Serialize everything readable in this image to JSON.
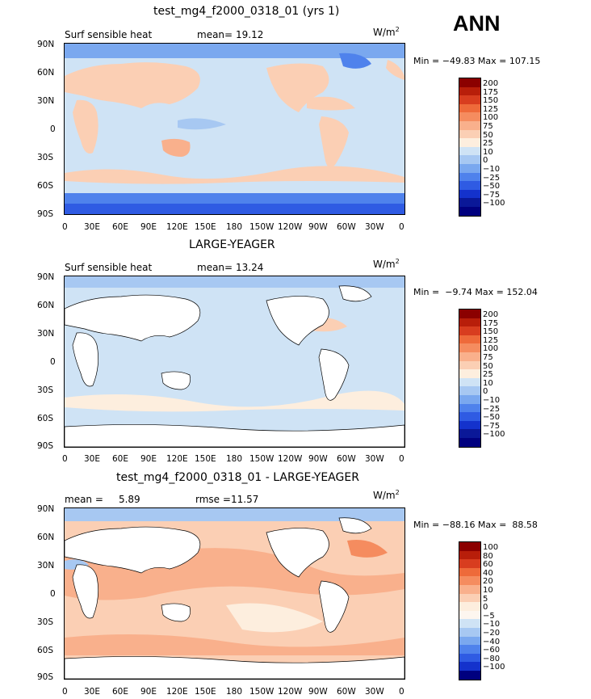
{
  "season": "ANN",
  "units_prefix": "W/m",
  "units_sup": "2",
  "lat_ticks": [
    "90N",
    "60N",
    "30N",
    "0",
    "30S",
    "60S",
    "90S"
  ],
  "lon_ticks": [
    "0",
    "30E",
    "60E",
    "90E",
    "120E",
    "150E",
    "180",
    "150W",
    "120W",
    "90W",
    "60W",
    "30W",
    "0"
  ],
  "panels": [
    {
      "title": "test_mg4_f2000_0318_01 (yrs 1)",
      "left_label": "Surf sensible heat",
      "stat_label": "mean=",
      "stat_value": "19.12",
      "minmax": "Min = −49.83 Max = 107.15",
      "colorbar_labels": [
        "200",
        "175",
        "150",
        "125",
        "100",
        "75",
        "50",
        "25",
        "10",
        "0",
        "−10",
        "−25",
        "−50",
        "−75",
        "−100"
      ],
      "colorbar_colors": [
        "#8b0000",
        "#b81e0a",
        "#d83d1f",
        "#ee6a3a",
        "#f58c5f",
        "#f9b08c",
        "#fbcfb4",
        "#fdeede",
        "#cfe3f5",
        "#a7c8f2",
        "#7aa8ef",
        "#4f82ec",
        "#2f5be3",
        "#1432cc",
        "#0a1898",
        "#00007f"
      ]
    },
    {
      "title": "LARGE-YEAGER",
      "left_label": "Surf sensible heat",
      "stat_label": "mean=",
      "stat_value": "13.24",
      "minmax": "Min =  −9.74 Max = 152.04",
      "colorbar_labels": [
        "200",
        "175",
        "150",
        "125",
        "100",
        "75",
        "50",
        "25",
        "10",
        "0",
        "−10",
        "−25",
        "−50",
        "−75",
        "−100"
      ],
      "colorbar_colors": [
        "#8b0000",
        "#b81e0a",
        "#d83d1f",
        "#ee6a3a",
        "#f58c5f",
        "#f9b08c",
        "#fbcfb4",
        "#fdeede",
        "#cfe3f5",
        "#a7c8f2",
        "#7aa8ef",
        "#4f82ec",
        "#2f5be3",
        "#1432cc",
        "#0a1898",
        "#00007f"
      ]
    },
    {
      "title": "test_mg4_f2000_0318_01 - LARGE-YEAGER",
      "left_label": "mean =     5.89",
      "stat_label": "rmse =",
      "stat_value": "11.57",
      "minmax": "Min = −88.16 Max =  88.58",
      "colorbar_labels": [
        "100",
        "80",
        "60",
        "40",
        "20",
        "10",
        "5",
        "0",
        "−5",
        "−10",
        "−20",
        "−40",
        "−60",
        "−80",
        "−100"
      ],
      "colorbar_colors": [
        "#8b0000",
        "#b81e0a",
        "#d83d1f",
        "#ee6a3a",
        "#f58c5f",
        "#f9b08c",
        "#fbcfb4",
        "#fdeede",
        "#fdf6ef",
        "#cfe3f5",
        "#a7c8f2",
        "#7aa8ef",
        "#4f82ec",
        "#2f5be3",
        "#1432cc",
        "#00007f"
      ]
    }
  ]
}
